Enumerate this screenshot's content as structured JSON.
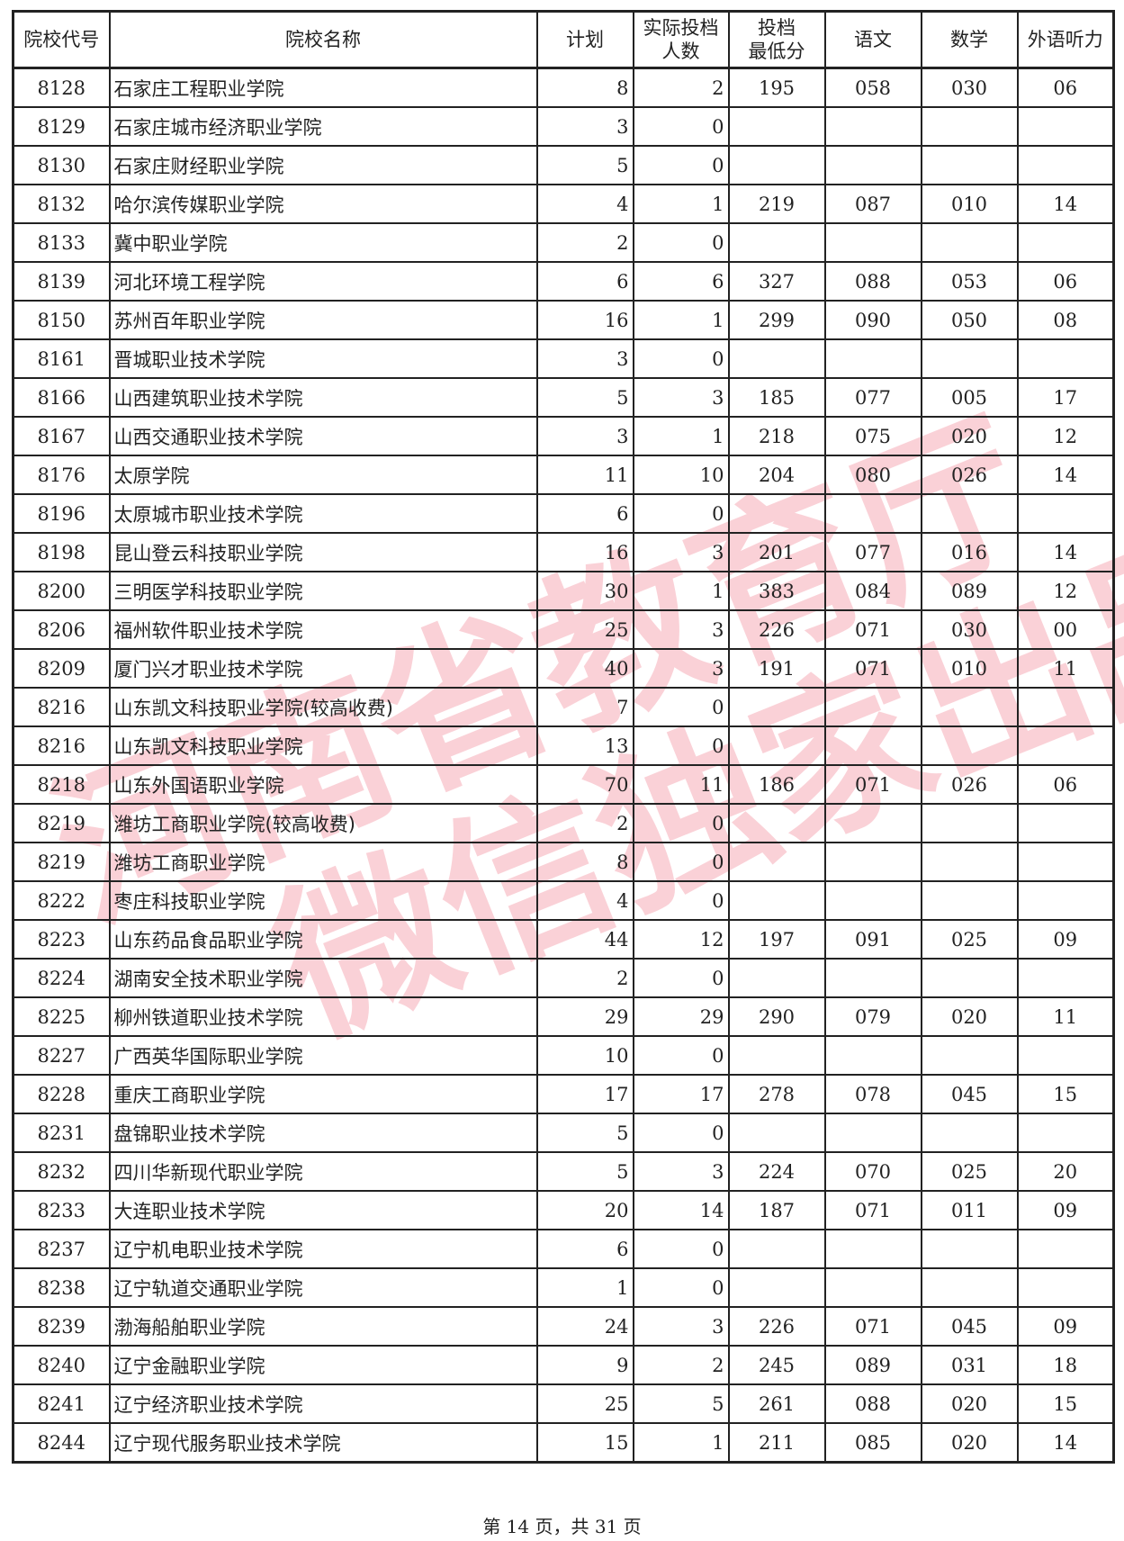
{
  "headers": {
    "code": "院校代号",
    "name": "院校名称",
    "plan": "计划",
    "actual_l1": "实际投档",
    "actual_l2": "人数",
    "min_l1": "投档",
    "min_l2": "最低分",
    "chinese": "语文",
    "math": "数学",
    "listening": "外语听力"
  },
  "rows": [
    [
      "8128",
      "石家庄工程职业学院",
      "8",
      "2",
      "195",
      "058",
      "030",
      "06"
    ],
    [
      "8129",
      "石家庄城市经济职业学院",
      "3",
      "0",
      "",
      "",
      "",
      ""
    ],
    [
      "8130",
      "石家庄财经职业学院",
      "5",
      "0",
      "",
      "",
      "",
      ""
    ],
    [
      "8132",
      "哈尔滨传媒职业学院",
      "4",
      "1",
      "219",
      "087",
      "010",
      "14"
    ],
    [
      "8133",
      "冀中职业学院",
      "2",
      "0",
      "",
      "",
      "",
      ""
    ],
    [
      "8139",
      "河北环境工程学院",
      "6",
      "6",
      "327",
      "088",
      "053",
      "06"
    ],
    [
      "8150",
      "苏州百年职业学院",
      "16",
      "1",
      "299",
      "090",
      "050",
      "08"
    ],
    [
      "8161",
      "晋城职业技术学院",
      "3",
      "0",
      "",
      "",
      "",
      ""
    ],
    [
      "8166",
      "山西建筑职业技术学院",
      "5",
      "3",
      "185",
      "077",
      "005",
      "17"
    ],
    [
      "8167",
      "山西交通职业技术学院",
      "3",
      "1",
      "218",
      "075",
      "020",
      "12"
    ],
    [
      "8176",
      "太原学院",
      "11",
      "10",
      "204",
      "080",
      "026",
      "14"
    ],
    [
      "8196",
      "太原城市职业技术学院",
      "6",
      "0",
      "",
      "",
      "",
      ""
    ],
    [
      "8198",
      "昆山登云科技职业学院",
      "16",
      "3",
      "201",
      "077",
      "016",
      "14"
    ],
    [
      "8200",
      "三明医学科技职业学院",
      "30",
      "1",
      "383",
      "084",
      "089",
      "12"
    ],
    [
      "8206",
      "福州软件职业技术学院",
      "25",
      "3",
      "226",
      "071",
      "030",
      "00"
    ],
    [
      "8209",
      "厦门兴才职业技术学院",
      "40",
      "3",
      "191",
      "071",
      "010",
      "11"
    ],
    [
      "8216",
      "山东凯文科技职业学院(较高收费)",
      "7",
      "0",
      "",
      "",
      "",
      ""
    ],
    [
      "8216",
      "山东凯文科技职业学院",
      "13",
      "0",
      "",
      "",
      "",
      ""
    ],
    [
      "8218",
      "山东外国语职业学院",
      "70",
      "11",
      "186",
      "071",
      "026",
      "06"
    ],
    [
      "8219",
      "潍坊工商职业学院(较高收费)",
      "2",
      "0",
      "",
      "",
      "",
      ""
    ],
    [
      "8219",
      "潍坊工商职业学院",
      "8",
      "0",
      "",
      "",
      "",
      ""
    ],
    [
      "8222",
      "枣庄科技职业学院",
      "4",
      "0",
      "",
      "",
      "",
      ""
    ],
    [
      "8223",
      "山东药品食品职业学院",
      "44",
      "12",
      "197",
      "091",
      "025",
      "09"
    ],
    [
      "8224",
      "湖南安全技术职业学院",
      "2",
      "0",
      "",
      "",
      "",
      ""
    ],
    [
      "8225",
      "柳州铁道职业技术学院",
      "29",
      "29",
      "290",
      "079",
      "020",
      "11"
    ],
    [
      "8227",
      "广西英华国际职业学院",
      "10",
      "0",
      "",
      "",
      "",
      ""
    ],
    [
      "8228",
      "重庆工商职业学院",
      "17",
      "17",
      "278",
      "078",
      "045",
      "15"
    ],
    [
      "8231",
      "盘锦职业技术学院",
      "5",
      "0",
      "",
      "",
      "",
      ""
    ],
    [
      "8232",
      "四川华新现代职业学院",
      "5",
      "3",
      "224",
      "070",
      "025",
      "20"
    ],
    [
      "8233",
      "大连职业技术学院",
      "20",
      "14",
      "187",
      "071",
      "011",
      "09"
    ],
    [
      "8237",
      "辽宁机电职业技术学院",
      "6",
      "0",
      "",
      "",
      "",
      ""
    ],
    [
      "8238",
      "辽宁轨道交通职业学院",
      "1",
      "0",
      "",
      "",
      "",
      ""
    ],
    [
      "8239",
      "渤海船舶职业学院",
      "24",
      "3",
      "226",
      "071",
      "045",
      "09"
    ],
    [
      "8240",
      "辽宁金融职业学院",
      "9",
      "2",
      "245",
      "089",
      "031",
      "18"
    ],
    [
      "8241",
      "辽宁经济职业技术学院",
      "25",
      "5",
      "261",
      "088",
      "020",
      "15"
    ],
    [
      "8244",
      "辽宁现代服务职业技术学院",
      "15",
      "1",
      "211",
      "085",
      "020",
      "14"
    ]
  ],
  "footer": "第 14 页，共 31 页",
  "watermark": {
    "line1": "河南省教育厅",
    "line2": "微信独家出品",
    "color": "#f07a8c"
  }
}
